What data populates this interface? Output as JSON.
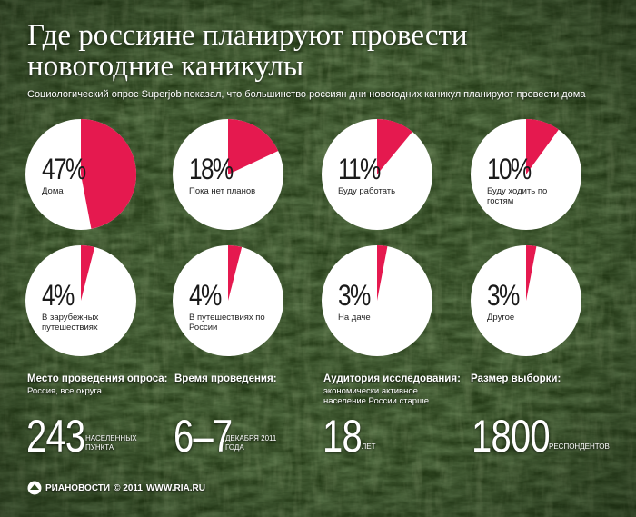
{
  "header": {
    "title_line1": "Где россияне планируют провести",
    "title_line2": "новогодние каникулы",
    "subtitle": "Социологический опрос Superjob показал, что большинство россиян дни новогодних каникул планируют провести дома"
  },
  "colors": {
    "accent": "#e5194f",
    "pie_bg": "#ffffff",
    "text_dark": "#1a1a1a"
  },
  "chart_data": {
    "type": "pie",
    "title": "Где россияне планируют провести новогодние каникулы",
    "series": [
      {
        "label": "Дома",
        "pct_text": "47%",
        "value": 47
      },
      {
        "label": "Пока нет планов",
        "pct_text": "18%",
        "value": 18
      },
      {
        "label": "Буду работать",
        "pct_text": "11%",
        "value": 11
      },
      {
        "label": "Буду ходить по гостям",
        "pct_text": "10%",
        "value": 10
      },
      {
        "label": "В зарубежных путешествиях",
        "pct_text": "4%",
        "value": 4
      },
      {
        "label": "В путешествиях по России",
        "pct_text": "4%",
        "value": 4
      },
      {
        "label": "На даче",
        "pct_text": "3%",
        "value": 3
      },
      {
        "label": "Другое",
        "pct_text": "3%",
        "value": 3
      }
    ]
  },
  "stats": {
    "place": {
      "heading": "Место проведения опроса:",
      "detail": "Россия, все округа",
      "value": "243",
      "unit": "населенных пункта"
    },
    "time": {
      "heading": "Время проведения:",
      "detail": "",
      "value": "6–7",
      "unit": "декабря 2011 года"
    },
    "audience": {
      "heading": "Аудитория исследования:",
      "detail": "экономически активное население России старше",
      "value": "18",
      "unit": "лет"
    },
    "sample": {
      "heading": "Размер выборки:",
      "detail": "",
      "value": "1800",
      "unit": "респондентов"
    }
  },
  "footer": {
    "brand": "РИАНОВОСТИ",
    "copyright": "© 2011",
    "site": "WWW.RIA.RU",
    "logo_icon": "ria-logo-icon"
  }
}
